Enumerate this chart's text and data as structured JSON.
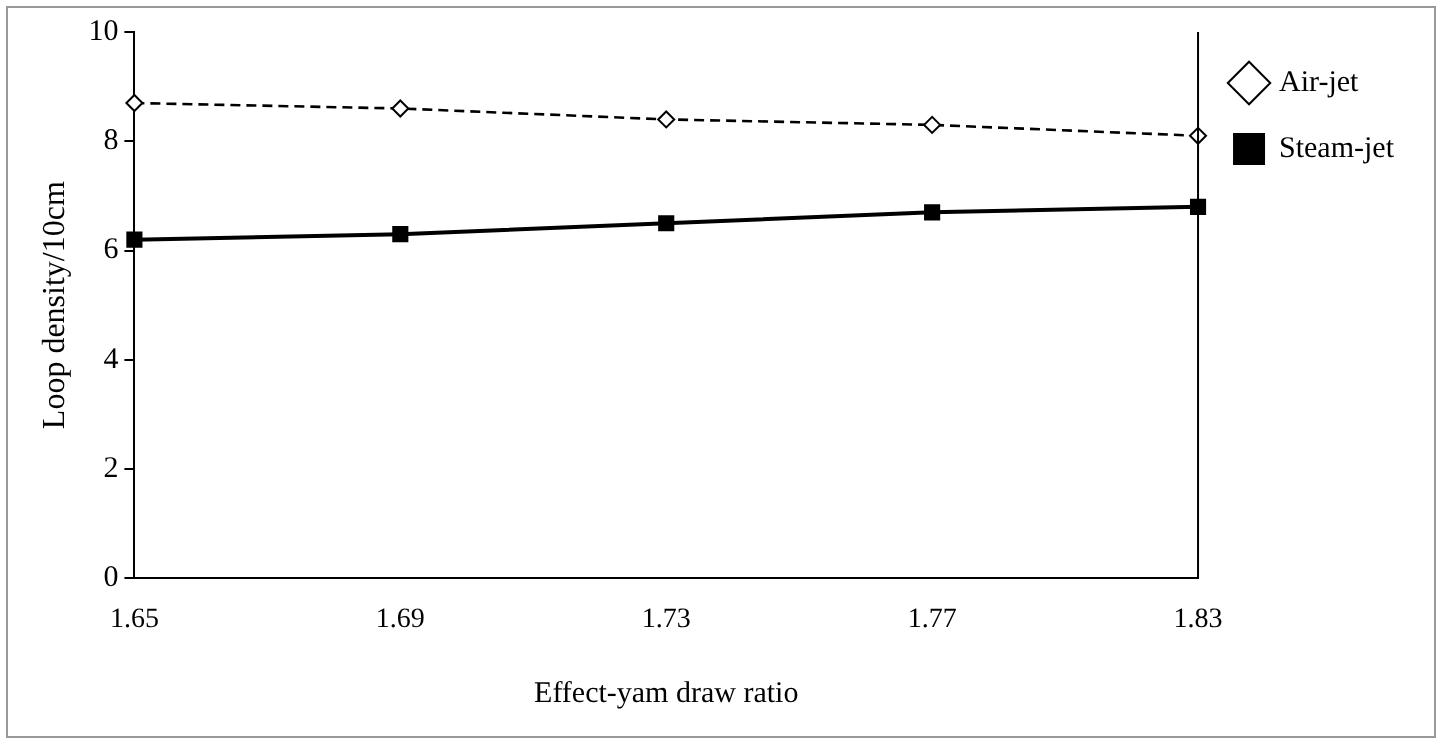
{
  "chart_data": {
    "type": "line",
    "xlabel": "Effect-yam draw ratio",
    "ylabel": "Loop density/10cm",
    "categories": [
      "1.65",
      "1.69",
      "1.73",
      "1.77",
      "1.83"
    ],
    "series": [
      {
        "name": "Air-jet",
        "color": "#000000",
        "values": [
          8.7,
          8.6,
          8.4,
          8.3,
          8.1
        ],
        "marker": "diamond",
        "line_style": "dashed"
      },
      {
        "name": "Steam-jet",
        "color": "#000000",
        "values": [
          6.2,
          6.3,
          6.5,
          6.7,
          6.8
        ],
        "marker": "square",
        "line_style": "solid"
      }
    ],
    "ylim": [
      0,
      10
    ],
    "yticks": [
      0,
      2,
      4,
      6,
      8,
      10
    ],
    "grid": false,
    "legend": "right"
  }
}
